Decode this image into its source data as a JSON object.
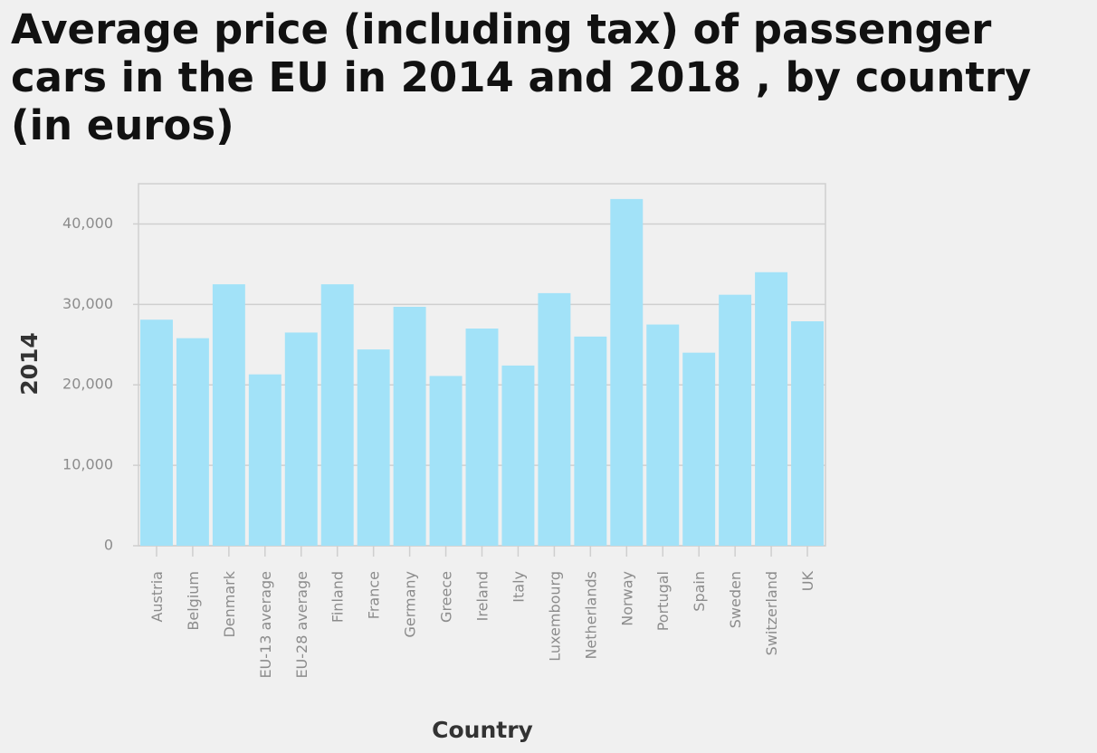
{
  "chart_data": {
    "type": "bar",
    "title": "Average price (including tax) of passenger cars in the EU in 2014 and 2018 , by country (in euros)",
    "xlabel": "Country",
    "ylabel": "2014",
    "categories": [
      "Austria",
      "Belgium",
      "Denmark",
      "EU-13 average",
      "EU-28 average",
      "Finland",
      "France",
      "Germany",
      "Greece",
      "Ireland",
      "Italy",
      "Luxembourg",
      "Netherlands",
      "Norway",
      "Portugal",
      "Spain",
      "Sweden",
      "Switzerland",
      "UK"
    ],
    "values": [
      28100,
      25800,
      32500,
      21300,
      26500,
      32500,
      24400,
      29700,
      21100,
      27000,
      22400,
      31400,
      26000,
      43100,
      27500,
      24000,
      31200,
      34000,
      27900
    ],
    "ylim": [
      0,
      45000
    ],
    "yticks": [
      0,
      10000,
      20000,
      30000,
      40000
    ],
    "ytick_labels": [
      "0",
      "10,000",
      "20,000",
      "30,000",
      "40,000"
    ],
    "grid": true,
    "colors": {
      "bar": "#a2e2f8",
      "grid": "#cfcfcf",
      "background": "#f0f0f0"
    }
  }
}
